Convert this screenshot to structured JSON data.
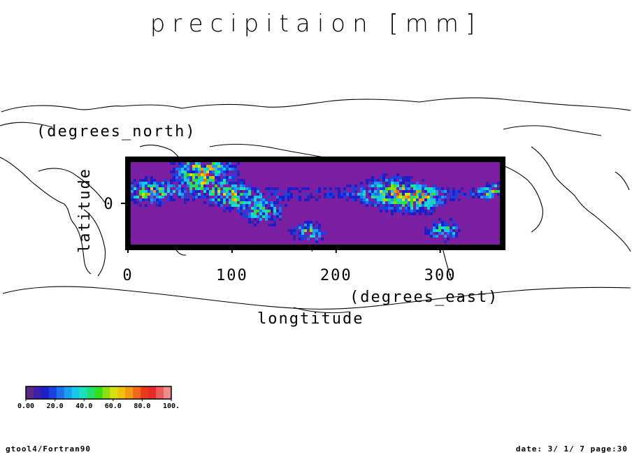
{
  "chart_data": {
    "type": "heatmap",
    "title": "precipitaion [mm]",
    "xlabel": "longtitude",
    "xunit": "(degrees_east)",
    "ylabel": "latitude",
    "yunit": "(degrees_north)",
    "xlim": [
      0,
      360
    ],
    "ylim": [
      -30,
      30
    ],
    "xticks": [
      0,
      100,
      200,
      300
    ],
    "xtick_labels": [
      "0",
      "100",
      "200",
      "300"
    ],
    "yticks": [
      0
    ],
    "ytick_labels": [
      "0"
    ],
    "colorbar": {
      "min": 0,
      "max": 100,
      "tick_labels": [
        "0.00",
        "20.0",
        "40.0",
        "60.0",
        "80.0",
        "100."
      ],
      "colors": [
        "#5b2a86",
        "#3a1fa8",
        "#1e1ec8",
        "#1940e0",
        "#1f6ff0",
        "#1aa0f2",
        "#18c8ea",
        "#1ce0b8",
        "#22e070",
        "#36e018",
        "#8ce012",
        "#d8e010",
        "#f0c010",
        "#f39a12",
        "#f06818",
        "#e83a1a",
        "#e82a2a",
        "#ec5a5a",
        "#f08c8c"
      ]
    },
    "background_color": "#7b1fa2",
    "values_note": "0–20 mm over most of the band; peaks 40–80 mm near the equator around 60–160 and 250–340 degrees east",
    "basemap": "world coastlines"
  },
  "footer": {
    "left": "gtool4/Fortran90",
    "right": "date: 3/ 1/ 7 page:30"
  }
}
